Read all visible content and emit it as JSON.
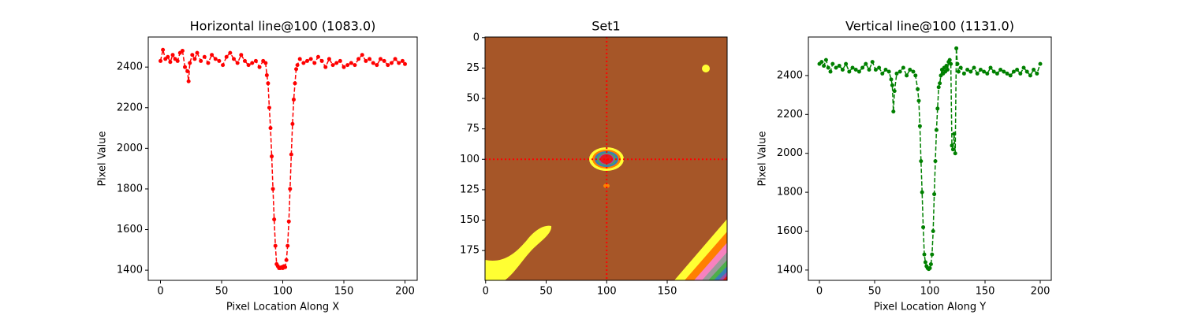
{
  "chart_data": [
    {
      "type": "line",
      "title": "Horizontal line@100 (1083.0)",
      "xlabel": "Pixel Location Along X",
      "ylabel": "Pixel Value",
      "linestyle": "dashed",
      "marker": "o",
      "x": [
        0,
        2,
        4,
        6,
        8,
        10,
        12,
        14,
        16,
        18,
        20,
        22,
        23,
        24,
        26,
        28,
        30,
        33,
        36,
        39,
        42,
        45,
        48,
        51,
        54,
        57,
        60,
        63,
        66,
        69,
        72,
        75,
        78,
        81,
        84,
        86,
        87,
        88,
        89,
        90,
        91,
        92,
        93,
        94,
        95,
        96,
        97,
        98,
        99,
        100,
        101,
        102,
        103,
        104,
        105,
        106,
        107,
        108,
        109,
        110,
        111,
        112,
        114,
        117,
        120,
        123,
        126,
        129,
        132,
        135,
        138,
        141,
        144,
        147,
        150,
        153,
        156,
        159,
        162,
        165,
        168,
        171,
        174,
        177,
        180,
        183,
        186,
        189,
        192,
        195,
        198,
        200
      ],
      "series": [
        {
          "color": "#ff0000",
          "values": [
            2430,
            2485,
            2440,
            2450,
            2425,
            2460,
            2440,
            2430,
            2470,
            2480,
            2400,
            2380,
            2330,
            2420,
            2460,
            2440,
            2470,
            2430,
            2450,
            2420,
            2460,
            2440,
            2430,
            2410,
            2450,
            2470,
            2440,
            2420,
            2460,
            2430,
            2410,
            2420,
            2430,
            2400,
            2430,
            2420,
            2360,
            2320,
            2200,
            2100,
            1960,
            1800,
            1650,
            1520,
            1430,
            1420,
            1410,
            1410,
            1415,
            1410,
            1420,
            1415,
            1450,
            1520,
            1640,
            1800,
            1970,
            2120,
            2240,
            2320,
            2390,
            2410,
            2440,
            2420,
            2430,
            2440,
            2420,
            2450,
            2430,
            2400,
            2440,
            2410,
            2420,
            2430,
            2400,
            2410,
            2420,
            2410,
            2440,
            2460,
            2430,
            2440,
            2420,
            2410,
            2440,
            2430,
            2410,
            2420,
            2440,
            2420,
            2430,
            2415
          ]
        }
      ],
      "xlim": [
        -10,
        210
      ],
      "ylim": [
        1350,
        2548
      ],
      "xticks": [
        0,
        50,
        100,
        150,
        200
      ],
      "yticks": [
        1400,
        1600,
        1800,
        2000,
        2200,
        2400
      ]
    },
    {
      "type": "image",
      "title": "Set1",
      "xlim": [
        -0.5,
        199.5
      ],
      "ylim": [
        199.5,
        -0.5
      ],
      "xticks": [
        0,
        50,
        100,
        150
      ],
      "yticks": [
        0,
        25,
        50,
        75,
        100,
        125,
        150,
        175
      ],
      "crosshair": {
        "x": 100,
        "y": 100,
        "color": "#ff0000"
      }
    },
    {
      "type": "line",
      "title": "Vertical line@100 (1131.0)",
      "xlabel": "Pixel Location Along Y",
      "ylabel": "Pixel Value",
      "linestyle": "dashed",
      "marker": "o",
      "x": [
        0,
        2,
        4,
        6,
        8,
        10,
        12,
        15,
        18,
        21,
        24,
        27,
        30,
        33,
        36,
        39,
        42,
        45,
        48,
        51,
        54,
        57,
        60,
        63,
        65,
        66,
        67,
        68,
        70,
        73,
        76,
        79,
        82,
        85,
        87,
        89,
        90,
        91,
        92,
        93,
        94,
        95,
        96,
        97,
        98,
        99,
        100,
        101,
        102,
        103,
        104,
        105,
        106,
        107,
        108,
        109,
        110,
        111,
        112,
        113,
        114,
        115,
        116,
        117,
        118,
        119,
        120,
        121,
        122,
        123,
        124,
        125,
        126,
        128,
        131,
        134,
        137,
        140,
        143,
        146,
        149,
        152,
        155,
        158,
        161,
        164,
        167,
        170,
        173,
        176,
        179,
        182,
        185,
        188,
        191,
        194,
        197,
        200
      ],
      "series": [
        {
          "color": "#008000",
          "values": [
            2460,
            2470,
            2450,
            2480,
            2440,
            2420,
            2460,
            2440,
            2450,
            2430,
            2460,
            2420,
            2440,
            2430,
            2420,
            2440,
            2460,
            2430,
            2470,
            2430,
            2440,
            2410,
            2430,
            2420,
            2380,
            2350,
            2215,
            2320,
            2410,
            2420,
            2440,
            2400,
            2430,
            2420,
            2400,
            2330,
            2270,
            2140,
            1960,
            1800,
            1620,
            1480,
            1440,
            1420,
            1410,
            1405,
            1410,
            1430,
            1480,
            1600,
            1790,
            1960,
            2120,
            2230,
            2340,
            2360,
            2400,
            2430,
            2410,
            2440,
            2420,
            2450,
            2430,
            2470,
            2480,
            2460,
            2040,
            2020,
            2100,
            2000,
            2540,
            2460,
            2420,
            2440,
            2410,
            2430,
            2420,
            2440,
            2410,
            2430,
            2420,
            2410,
            2440,
            2420,
            2410,
            2430,
            2420,
            2410,
            2400,
            2420,
            2430,
            2410,
            2440,
            2420,
            2400,
            2430,
            2410,
            2460
          ]
        }
      ],
      "xlim": [
        -10,
        210
      ],
      "ylim": [
        1347,
        2598
      ],
      "xticks": [
        0,
        50,
        100,
        150,
        200
      ],
      "yticks": [
        1400,
        1600,
        1800,
        2000,
        2200,
        2400
      ]
    }
  ]
}
